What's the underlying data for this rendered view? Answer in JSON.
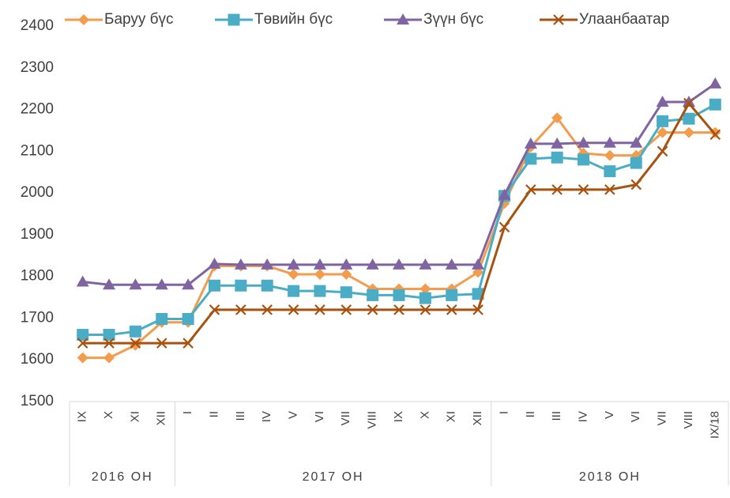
{
  "chart_data": {
    "type": "line",
    "groups": [
      {
        "label": "2016 ОН",
        "categories": [
          "IX",
          "X",
          "XI",
          "XII"
        ]
      },
      {
        "label": "2017 ОН",
        "categories": [
          "I",
          "II",
          "III",
          "IV",
          "V",
          "VI",
          "VII",
          "VIII",
          "IX",
          "X",
          "XI",
          "XII"
        ]
      },
      {
        "label": "2018 ОН",
        "categories": [
          "I",
          "II",
          "III",
          "IV",
          "V",
          "VI",
          "VII",
          "VIII",
          "IX/18"
        ]
      }
    ],
    "series": [
      {
        "name": "Баруу бүс",
        "color": "#f39c4e",
        "marker": "diamond",
        "values": [
          1605,
          1605,
          1635,
          1690,
          1690,
          1825,
          1825,
          1825,
          1805,
          1805,
          1805,
          1770,
          1770,
          1770,
          1770,
          1810,
          1975,
          2110,
          2180,
          2095,
          2090,
          2090,
          2145,
          2145,
          2145
        ]
      },
      {
        "name": "Төвийн бүс",
        "color": "#4bacc6",
        "marker": "square",
        "values": [
          1660,
          1660,
          1668,
          1698,
          1698,
          1778,
          1778,
          1778,
          1765,
          1765,
          1762,
          1755,
          1755,
          1748,
          1755,
          1758,
          1993,
          2082,
          2085,
          2080,
          2052,
          2072,
          2172,
          2178,
          2212
        ]
      },
      {
        "name": "Зүүн бүс",
        "color": "#8064a2",
        "marker": "triangle",
        "values": [
          1787,
          1780,
          1780,
          1780,
          1780,
          1830,
          1828,
          1828,
          1828,
          1828,
          1828,
          1828,
          1828,
          1828,
          1828,
          1828,
          1995,
          2118,
          2118,
          2120,
          2120,
          2120,
          2218,
          2218,
          2262
        ]
      },
      {
        "name": "Улаанбаатар",
        "color": "#a8520f",
        "marker": "x",
        "values": [
          1640,
          1640,
          1640,
          1640,
          1640,
          1720,
          1720,
          1720,
          1720,
          1720,
          1720,
          1720,
          1720,
          1720,
          1720,
          1720,
          1918,
          2008,
          2008,
          2008,
          2008,
          2020,
          2100,
          2215,
          2140
        ]
      }
    ],
    "ylim": [
      1500,
      2400
    ],
    "yticks": [
      1500,
      1600,
      1700,
      1800,
      1900,
      2000,
      2100,
      2200,
      2300,
      2400
    ],
    "grid": false,
    "legend": "top"
  }
}
